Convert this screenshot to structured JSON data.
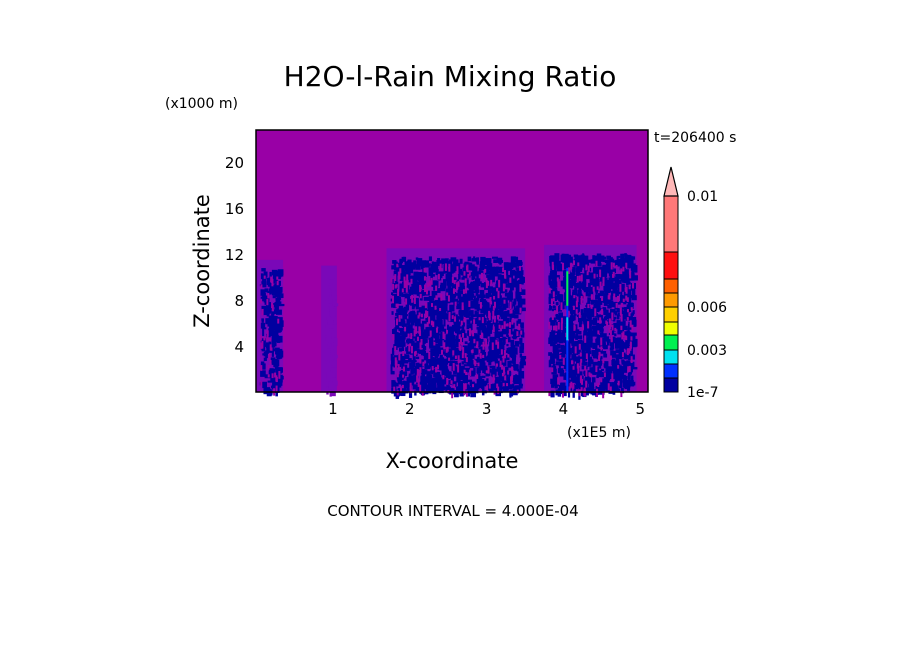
{
  "chart_data": {
    "type": "heatmap",
    "title": "H2O-l-Rain Mixing Ratio",
    "xlabel": "X-coordinate",
    "ylabel": "Z-coordinate",
    "x_unit": "(x1E5 m)",
    "y_unit": "(x1000 m)",
    "xlim": [
      0,
      5.1
    ],
    "ylim": [
      0,
      22.8
    ],
    "x_ticks": [
      "1",
      "2",
      "3",
      "4",
      "5"
    ],
    "x_tick_values": [
      1,
      2,
      3,
      4,
      5
    ],
    "y_ticks": [
      "4",
      "8",
      "12",
      "16",
      "20"
    ],
    "y_tick_values": [
      4,
      8,
      12,
      16,
      20
    ],
    "time_label": "t=206400 s",
    "footer": "CONTOUR INTERVAL = 4.000E-04",
    "background_color": "#9900a6",
    "colorbar": {
      "labels": [
        "1e-7",
        "0.003",
        "0.006",
        "0.01"
      ],
      "label_levels": [
        0,
        3,
        6,
        10
      ],
      "colors": [
        "#0000a0",
        "#0030ff",
        "#00e0f0",
        "#00f050",
        "#f0ff00",
        "#ffd000",
        "#ff9a00",
        "#ff6000",
        "#ff1010",
        "#ff7878"
      ],
      "extend_color": "#ffb8b8"
    },
    "rain_regions_x": [
      [
        0.05,
        0.3
      ],
      [
        0.9,
        1.0
      ],
      [
        1.75,
        3.45
      ],
      [
        3.8,
        4.9
      ]
    ],
    "rain_top_z": [
      11.5,
      11.0,
      12.5,
      12.8
    ],
    "streak_x": 4.05
  }
}
